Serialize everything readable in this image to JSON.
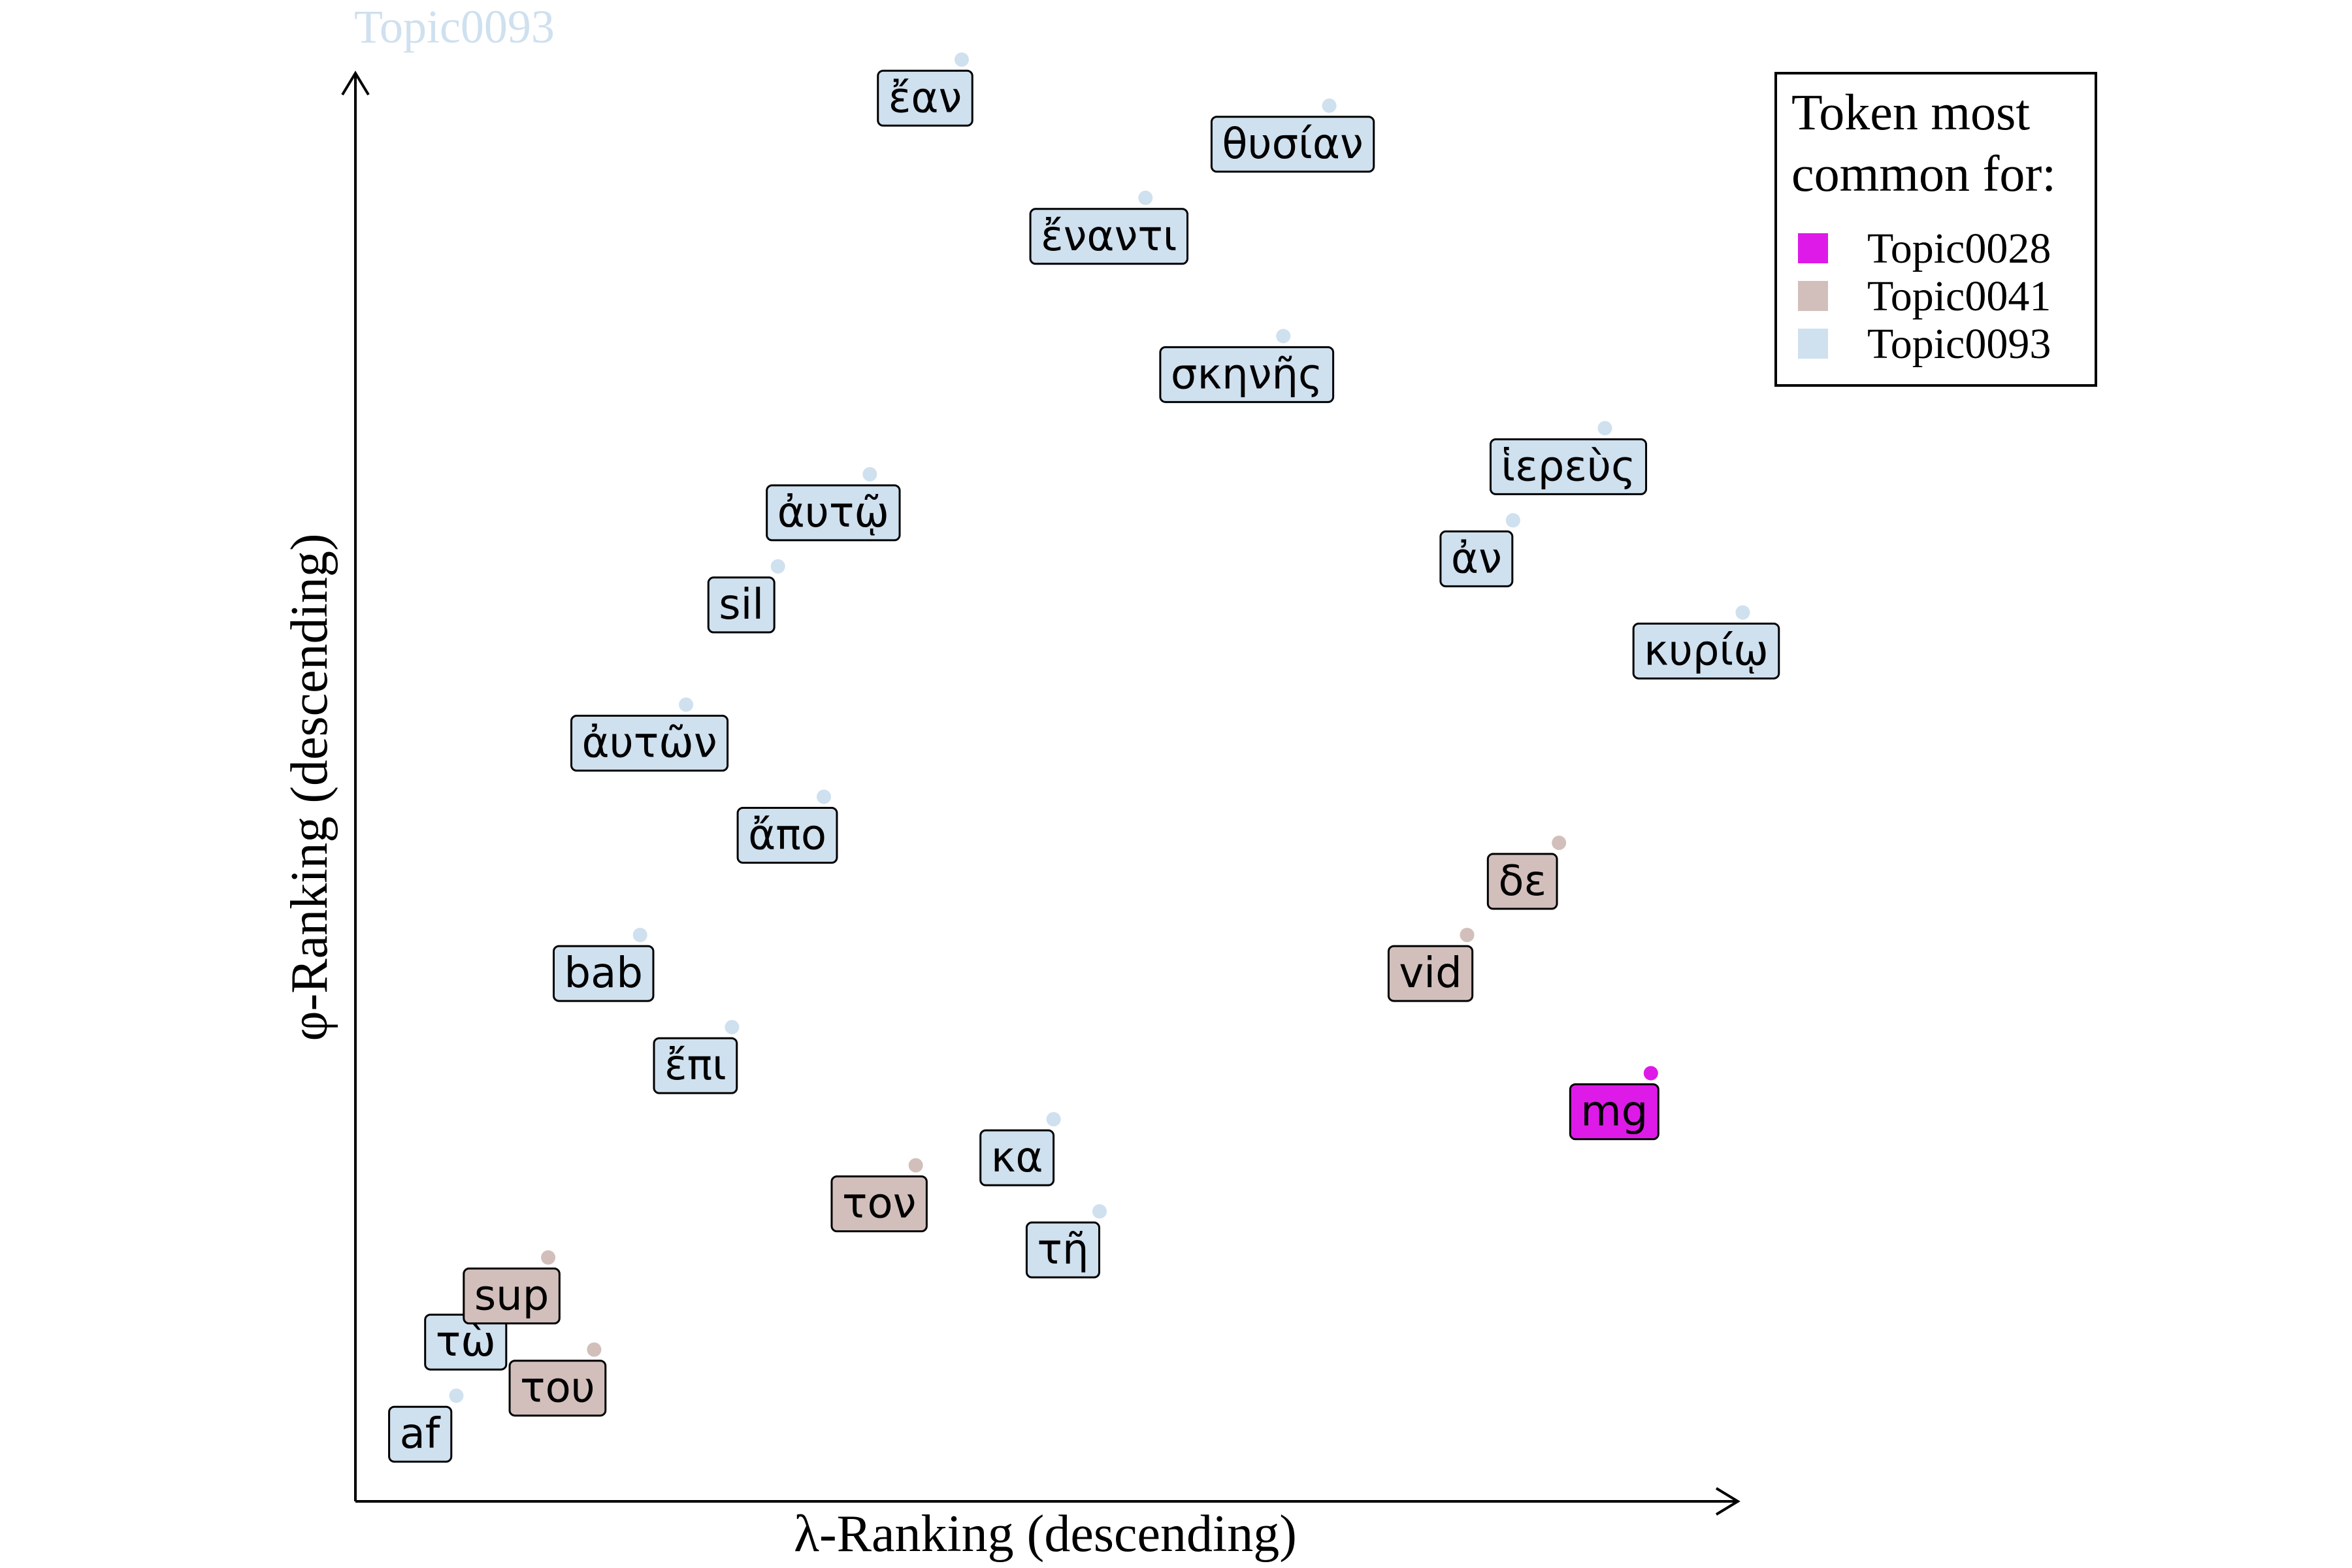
{
  "chart_data": {
    "type": "scatter",
    "title": "Topic0093",
    "xlabel": "λ-Ranking (descending)",
    "ylabel": "φ-Ranking (descending)",
    "xlim": [
      0,
      31
    ],
    "ylim": [
      0,
      31
    ],
    "grid": false,
    "legend": {
      "title_lines": [
        "Token most",
        "common for:"
      ],
      "placement": "top-right",
      "entries": [
        {
          "name": "Topic0028",
          "color": "#dd1ae8"
        },
        {
          "name": "Topic0041",
          "color": "#d2bfbb"
        },
        {
          "name": "Topic0093",
          "color": "#cfe0ef"
        }
      ]
    },
    "colors": {
      "Topic0028": "#dd1ae8",
      "Topic0041": "#d2bfbb",
      "Topic0093": "#cfe0ef",
      "title": "#cfe0ef"
    },
    "points": [
      {
        "token": "af",
        "topic": "Topic0093",
        "x": 1.4,
        "y": 1.5
      },
      {
        "token": "τὼ",
        "topic": "Topic0093",
        "x": 2.4,
        "y": 3.5
      },
      {
        "token": "τoυ",
        "topic": "Topic0041",
        "x": 4.4,
        "y": 2.5
      },
      {
        "token": "sup",
        "topic": "Topic0041",
        "x": 3.4,
        "y": 4.5
      },
      {
        "token": "ἔπι",
        "topic": "Topic0093",
        "x": 7.4,
        "y": 9.5
      },
      {
        "token": "bab",
        "topic": "Topic0093",
        "x": 5.4,
        "y": 11.5
      },
      {
        "token": "ἄπο",
        "topic": "Topic0093",
        "x": 9.4,
        "y": 14.5
      },
      {
        "token": "ἀυτῶν",
        "topic": "Topic0093",
        "x": 6.4,
        "y": 16.5
      },
      {
        "token": "sil",
        "topic": "Topic0093",
        "x": 8.4,
        "y": 19.5
      },
      {
        "token": "ἀυτῷ",
        "topic": "Topic0093",
        "x": 10.4,
        "y": 21.5
      },
      {
        "token": "ἔαν",
        "topic": "Topic0093",
        "x": 12.4,
        "y": 30.5
      },
      {
        "token": "τoν",
        "topic": "Topic0041",
        "x": 11.4,
        "y": 6.5
      },
      {
        "token": "κα",
        "topic": "Topic0093",
        "x": 14.4,
        "y": 7.5
      },
      {
        "token": "τῆ",
        "topic": "Topic0093",
        "x": 15.4,
        "y": 5.5
      },
      {
        "token": "ἔναντι",
        "topic": "Topic0093",
        "x": 16.4,
        "y": 27.5
      },
      {
        "token": "σκηνῆς",
        "topic": "Topic0093",
        "x": 19.4,
        "y": 24.5
      },
      {
        "token": "θυσίαν",
        "topic": "Topic0093",
        "x": 20.4,
        "y": 29.5
      },
      {
        "token": "vid",
        "topic": "Topic0041",
        "x": 23.4,
        "y": 11.5
      },
      {
        "token": "ἀν",
        "topic": "Topic0093",
        "x": 24.4,
        "y": 20.5
      },
      {
        "token": "δε",
        "topic": "Topic0041",
        "x": 25.4,
        "y": 13.5
      },
      {
        "token": "ἱερεὺς",
        "topic": "Topic0093",
        "x": 26.4,
        "y": 22.5
      },
      {
        "token": "mg",
        "topic": "Topic0028",
        "x": 27.4,
        "y": 8.5
      },
      {
        "token": "κυρίῳ",
        "topic": "Topic0093",
        "x": 29.4,
        "y": 18.5
      }
    ]
  }
}
